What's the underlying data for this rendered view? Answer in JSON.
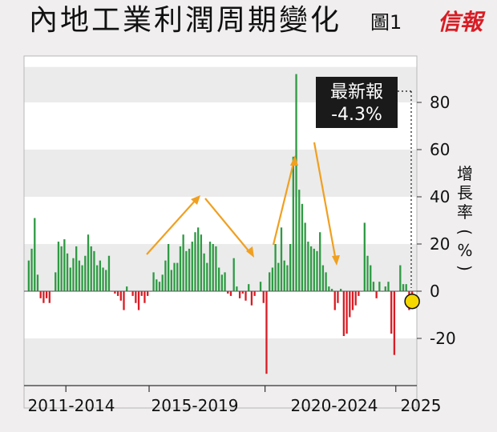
{
  "title": "內地工業利潤周期變化",
  "subtitle": "圖1",
  "logo_text": "信報",
  "colors": {
    "positive": "#2e9a43",
    "negative": "#d81c24",
    "arrow": "#f0a020",
    "band": "#ebebeb",
    "plot_bg": "#ffffff",
    "callout_bg": "#1a1a1a",
    "highlight": "#f5d800"
  },
  "chart_data": {
    "type": "bar",
    "title": "內地工業利潤周期變化",
    "ylabel": "增長率(%)",
    "ylim": [
      -40,
      95
    ],
    "yticks": [
      80,
      60,
      40,
      20,
      0,
      -20
    ],
    "ytick_labels": [
      "80",
      "60",
      "40",
      "20",
      "0",
      "-20"
    ],
    "grid": "alternating horizontal bands",
    "period_labels": [
      "2011-2014",
      "2015-2019",
      "2020-2024",
      "2025"
    ],
    "callout": {
      "line1": "最新報",
      "line2": "-4.3%"
    },
    "latest_value": -4.3,
    "values": [
      13,
      18,
      31,
      7,
      -3,
      -5,
      -3,
      -5,
      0,
      8,
      21,
      19,
      22,
      16,
      10,
      14,
      19,
      13,
      11,
      15,
      24,
      19,
      17,
      11,
      13,
      10,
      9,
      15,
      0,
      -1,
      -2,
      -4,
      -8,
      2,
      0,
      -2,
      -5,
      -8,
      -2,
      -5,
      -2,
      0,
      8,
      5,
      4,
      7,
      13,
      20,
      9,
      12,
      12,
      19,
      24,
      17,
      18,
      21,
      25,
      27,
      24,
      16,
      12,
      21,
      20,
      19,
      10,
      7,
      8,
      -1,
      -2,
      14,
      2,
      -3,
      -1,
      -4,
      3,
      -6,
      -2,
      0,
      4,
      -5,
      -35,
      8,
      10,
      20,
      12,
      27,
      13,
      11,
      20,
      57,
      92,
      43,
      37,
      29,
      21,
      19,
      18,
      17,
      25,
      11,
      8,
      2,
      1,
      -8,
      -5,
      1,
      -19,
      -18,
      -11,
      -8,
      -6,
      -2,
      0,
      29,
      15,
      11,
      4,
      -3,
      4,
      0,
      2,
      4,
      -18,
      -27,
      0,
      11,
      3,
      3,
      -8,
      -4.3
    ]
  }
}
